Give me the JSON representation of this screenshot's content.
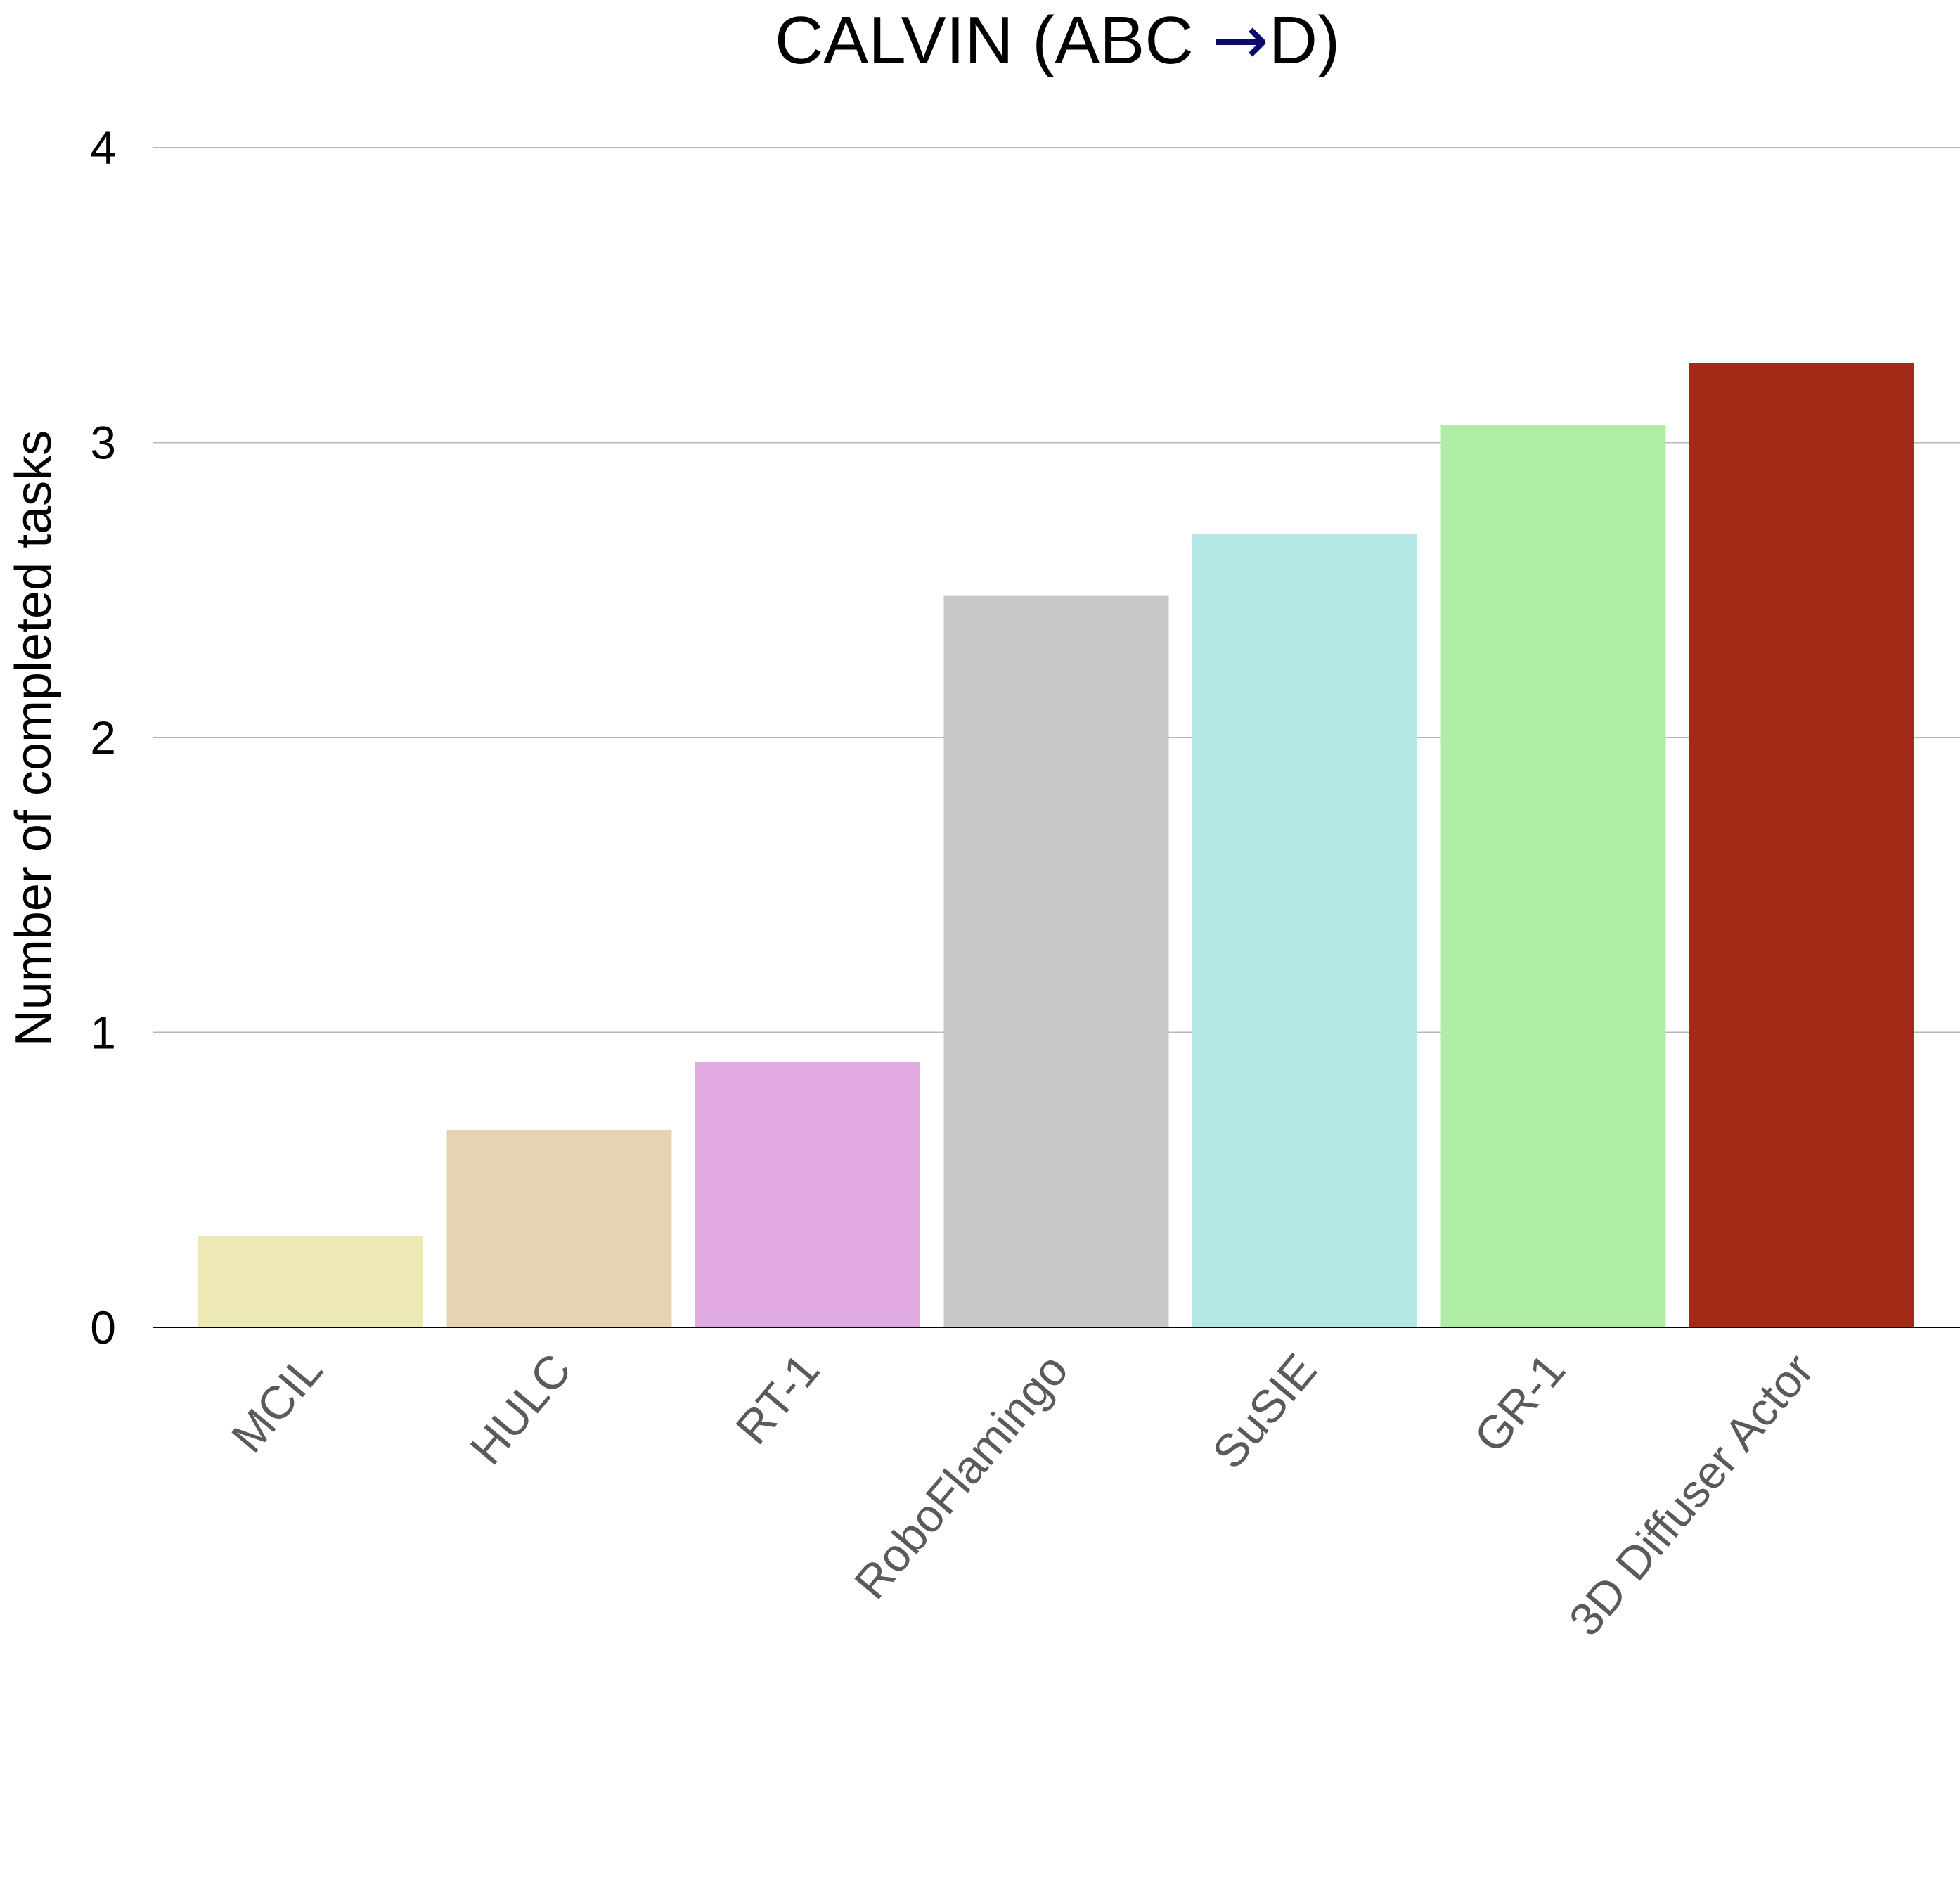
{
  "chart_data": {
    "type": "bar",
    "title": {
      "before": "CALVIN (ABC ",
      "arrow": "→",
      "after": "D)"
    },
    "ylabel": "Number of completed tasks",
    "xlabel": "",
    "ylim": [
      0,
      4
    ],
    "yticks": [
      "0",
      "1",
      "2",
      "3",
      "4"
    ],
    "grid": true,
    "categories": [
      "MCIL",
      "HULC",
      "RT-1",
      "RoboFlamingo",
      "SuSIE",
      "GR-1",
      "3D Diffuser Actor"
    ],
    "values": [
      0.31,
      0.67,
      0.9,
      2.48,
      2.69,
      3.06,
      3.27
    ],
    "colors": [
      "#ece9b5",
      "#e8d2b4",
      "#e1aae3",
      "#c7c7c7",
      "#b4e8e6",
      "#b0eea6",
      "#a22a17"
    ],
    "arrow_color": "#0b0b6b"
  }
}
